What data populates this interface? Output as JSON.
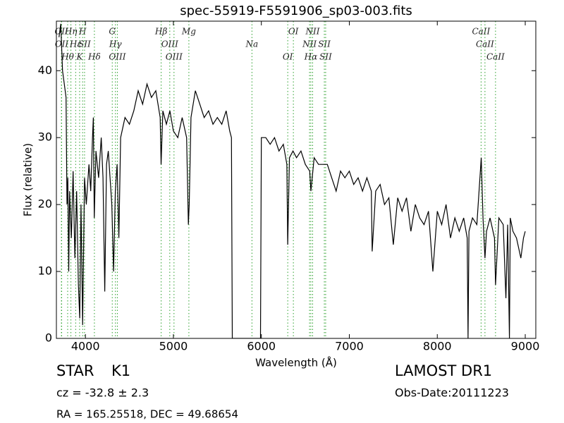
{
  "chart_data": {
    "type": "line",
    "title": "spec-55919-F5591906_sp03-003.fits",
    "x_label": "Wavelength (Å)",
    "y_label": "Flux (relative)",
    "xlim": [
      3670,
      9120
    ],
    "ylim": [
      0,
      47.4
    ],
    "xticks": [
      4000,
      5000,
      6000,
      7000,
      8000,
      9000
    ],
    "yticks": [
      0,
      10,
      20,
      30,
      40
    ],
    "color": "#000000",
    "line_color": "#2ca02c",
    "x": [
      3700,
      3720,
      3740,
      3760,
      3780,
      3790,
      3800,
      3810,
      3820,
      3840,
      3860,
      3880,
      3900,
      3920,
      3935,
      3950,
      3968,
      3990,
      4010,
      4040,
      4060,
      4080,
      4090,
      4100,
      4120,
      4150,
      4180,
      4200,
      4220,
      4240,
      4260,
      4280,
      4300,
      4320,
      4340,
      4360,
      4380,
      4400,
      4450,
      4500,
      4550,
      4600,
      4650,
      4700,
      4750,
      4800,
      4850,
      4860,
      4880,
      4920,
      4960,
      5000,
      5050,
      5100,
      5150,
      5170,
      5180,
      5200,
      5250,
      5300,
      5350,
      5400,
      5450,
      5500,
      5550,
      5600,
      5640,
      5660,
      5670,
      5990,
      6000,
      6050,
      6100,
      6150,
      6200,
      6250,
      6290,
      6300,
      6320,
      6360,
      6400,
      6450,
      6500,
      6550,
      6563,
      6600,
      6650,
      6700,
      6750,
      6800,
      6850,
      6900,
      6950,
      7000,
      7050,
      7100,
      7150,
      7200,
      7250,
      7260,
      7300,
      7350,
      7400,
      7450,
      7500,
      7550,
      7600,
      7650,
      7700,
      7750,
      7800,
      7850,
      7900,
      7950,
      8000,
      8050,
      8100,
      8150,
      8200,
      8250,
      8300,
      8340,
      8350,
      8360,
      8400,
      8450,
      8500,
      8520,
      8542,
      8560,
      8600,
      8650,
      8662,
      8700,
      8750,
      8780,
      8800,
      8820,
      8830,
      8860,
      8900,
      8950,
      8980,
      9000
    ],
    "values": [
      45,
      47,
      40,
      38,
      36,
      20,
      24,
      10,
      22,
      15,
      25,
      12,
      22,
      8,
      3,
      20,
      2,
      24,
      20,
      26,
      22,
      30,
      33,
      18,
      28,
      24,
      30,
      24,
      7,
      26,
      28,
      24,
      20,
      10,
      22,
      26,
      15,
      30,
      33,
      32,
      34,
      37,
      35,
      38,
      36,
      37,
      33,
      26,
      34,
      32,
      34,
      31,
      30,
      33,
      30,
      17,
      20,
      33,
      37,
      35,
      33,
      34,
      32,
      33,
      32,
      34,
      31,
      30,
      0,
      0,
      30,
      30,
      29,
      30,
      28,
      29,
      26,
      14,
      27,
      28,
      27,
      28,
      26,
      25,
      22,
      27,
      26,
      26,
      26,
      24,
      22,
      25,
      24,
      25,
      23,
      24,
      22,
      24,
      22,
      13,
      22,
      23,
      20,
      21,
      14,
      21,
      19,
      21,
      16,
      20,
      18,
      17,
      19,
      10,
      19,
      17,
      20,
      15,
      18,
      16,
      18,
      15,
      0,
      16,
      18,
      17,
      27,
      18,
      12,
      16,
      18,
      15,
      8,
      18,
      17,
      6,
      17,
      0,
      18,
      16,
      15,
      12,
      15,
      16
    ],
    "lines": [
      {
        "wavelength": 3727,
        "label": "OII"
      },
      {
        "wavelength": 3730,
        "label": "OII"
      },
      {
        "wavelength": 3798,
        "label": "Hθ"
      },
      {
        "wavelength": 3835,
        "label": "Hη"
      },
      {
        "wavelength": 3889,
        "label": "Hε"
      },
      {
        "wavelength": 3934,
        "label": "K"
      },
      {
        "wavelength": 3968,
        "label": "H"
      },
      {
        "wavelength": 3990,
        "label": "SII"
      },
      {
        "wavelength": 4102,
        "label": "Hδ"
      },
      {
        "wavelength": 4305,
        "label": "G"
      },
      {
        "wavelength": 4341,
        "label": "Hγ"
      },
      {
        "wavelength": 4363,
        "label": "OIII"
      },
      {
        "wavelength": 4861,
        "label": "Hβ"
      },
      {
        "wavelength": 4959,
        "label": "OIII"
      },
      {
        "wavelength": 5007,
        "label": "OIII"
      },
      {
        "wavelength": 5176,
        "label": "Mg"
      },
      {
        "wavelength": 5893,
        "label": "Na"
      },
      {
        "wavelength": 6300,
        "label": "OI"
      },
      {
        "wavelength": 6364,
        "label": "OI"
      },
      {
        "wavelength": 6548,
        "label": "NII"
      },
      {
        "wavelength": 6563,
        "label": "Hα"
      },
      {
        "wavelength": 6583,
        "label": "NII"
      },
      {
        "wavelength": 6716,
        "label": "SII"
      },
      {
        "wavelength": 6731,
        "label": "SII"
      },
      {
        "wavelength": 8498,
        "label": "CaII"
      },
      {
        "wavelength": 8542,
        "label": "CaII"
      },
      {
        "wavelength": 8662,
        "label": "CaII"
      }
    ],
    "class": "STAR",
    "subclass": "K1",
    "redshift": "cz = -32.8 ± 2.3",
    "survey": "LAMOST DR1",
    "obs_date": "Obs-Date:20111223",
    "coords": "RA = 165.25518, DEC = 49.68654"
  }
}
